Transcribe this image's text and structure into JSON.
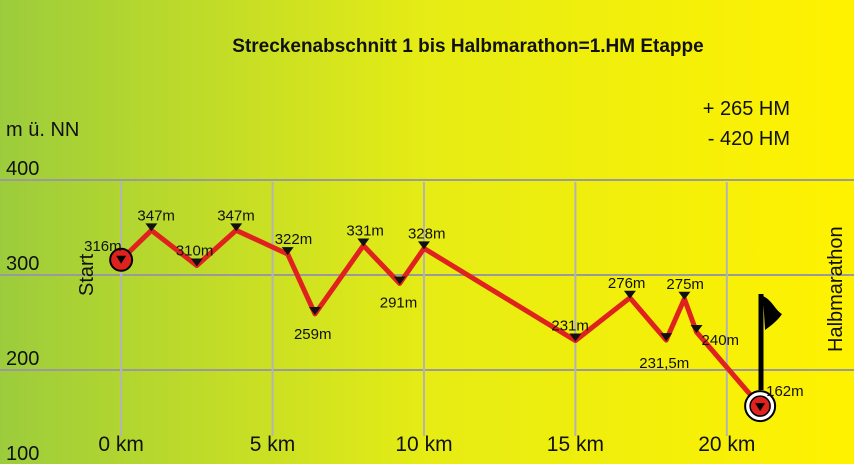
{
  "chart_data": {
    "type": "line",
    "title": "Streckenabschnitt 1 bis Halbmarathon=1.HM Etappe",
    "ylabel": "m ü. NN",
    "ylim": [
      100,
      400
    ],
    "yticks": [
      "400",
      "300",
      "200",
      "100"
    ],
    "xlim": [
      -4,
      24.2
    ],
    "xticks": [
      {
        "value": 0,
        "label": "0 km"
      },
      {
        "value": 5,
        "label": "5 km"
      },
      {
        "value": 10,
        "label": "10 km"
      },
      {
        "value": 15,
        "label": "15 km"
      },
      {
        "value": 20,
        "label": "20 km"
      }
    ],
    "grid": "horizontal and vertical at ticks",
    "start_label": "Start",
    "finish_label": "Halbmarathon",
    "ascent": "+ 265 HM",
    "descent": "- 420 HM",
    "line_color": "#e0221e",
    "background_gradient": [
      "#9ccc3c",
      "#e6ec14",
      "#fff200"
    ],
    "series": [
      {
        "points": [
          {
            "x": 0,
            "y": 316,
            "label": "316m",
            "marker": "start"
          },
          {
            "x": 1,
            "y": 347,
            "label": "347m"
          },
          {
            "x": 2.5,
            "y": 310,
            "label": "310m"
          },
          {
            "x": 3.8,
            "y": 347,
            "label": "347m"
          },
          {
            "x": 5.5,
            "y": 322,
            "label": "322m"
          },
          {
            "x": 6.4,
            "y": 259,
            "label": "259m"
          },
          {
            "x": 8,
            "y": 331,
            "label": "331m"
          },
          {
            "x": 9.2,
            "y": 291,
            "label": "291m"
          },
          {
            "x": 10,
            "y": 328,
            "label": "328m"
          },
          {
            "x": 15,
            "y": 231,
            "label": "231m"
          },
          {
            "x": 16.8,
            "y": 276,
            "label": "276m"
          },
          {
            "x": 18,
            "y": 231.5,
            "label": "231,5m"
          },
          {
            "x": 18.6,
            "y": 275,
            "label": "275m"
          },
          {
            "x": 19,
            "y": 240,
            "label": "240m"
          },
          {
            "x": 21.1,
            "y": 162,
            "label": "162m",
            "marker": "finish"
          }
        ]
      }
    ]
  }
}
